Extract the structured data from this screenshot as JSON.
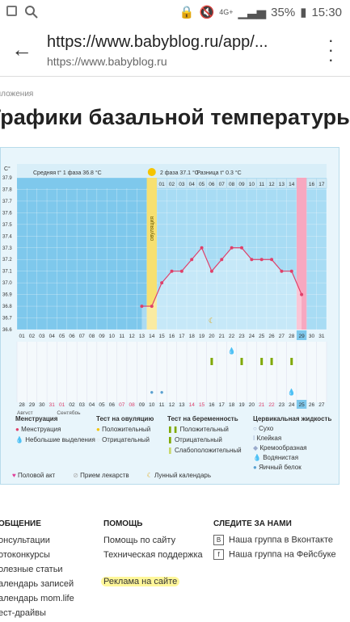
{
  "status": {
    "battery": "35%",
    "time": "15:30",
    "network": "4G+"
  },
  "browser": {
    "url": "https://www.babyblog.ru/app/...",
    "domain": "https://www.babyblog.ru"
  },
  "page": {
    "breadcrumb": "риложения",
    "title": "Графики базальной температуры"
  },
  "chart_data": {
    "type": "line",
    "unit": "С°",
    "phase1": "Средняя t° 1 фаза  36.8 °C",
    "phase2": "2 фаза  37.1 °C",
    "diff": "Разница t°  0.3 °C",
    "ovulation_label": "овуляция",
    "yticks": [
      "37.9",
      "37.8",
      "37.7",
      "37.6",
      "37.5",
      "37.4",
      "37.3",
      "37.2",
      "37.1",
      "37.0",
      "36.9",
      "36.8",
      "36.7",
      "36.6"
    ],
    "ylim": [
      36.6,
      37.9
    ],
    "top_days": [
      "01",
      "02",
      "03",
      "04",
      "05",
      "06",
      "07",
      "08",
      "09",
      "10",
      "11",
      "12",
      "13",
      "14",
      "15",
      "16",
      "17"
    ],
    "x": [
      "01",
      "02",
      "03",
      "04",
      "05",
      "06",
      "07",
      "08",
      "09",
      "10",
      "11",
      "12",
      "13",
      "14",
      "15",
      "16",
      "17",
      "18",
      "19",
      "20",
      "21",
      "22",
      "23",
      "24",
      "25",
      "26",
      "27",
      "28",
      "29",
      "30",
      "31"
    ],
    "y": [
      null,
      null,
      null,
      null,
      null,
      null,
      null,
      null,
      null,
      null,
      null,
      null,
      36.8,
      36.8,
      37.0,
      37.1,
      37.1,
      37.2,
      37.3,
      37.1,
      37.2,
      37.3,
      37.3,
      37.2,
      37.2,
      37.2,
      37.1,
      37.1,
      36.9,
      null,
      null
    ],
    "dates": [
      "28",
      "29",
      "30",
      "31",
      "01",
      "02",
      "03",
      "04",
      "05",
      "06",
      "07",
      "08",
      "09",
      "10",
      "11",
      "12",
      "13",
      "14",
      "15",
      "16",
      "17",
      "18",
      "19",
      "20",
      "21",
      "22",
      "23",
      "24",
      "25",
      "26",
      "27"
    ],
    "months": [
      "Август",
      "Сентябрь"
    ]
  },
  "legend": {
    "menstruation": {
      "title": "Менструация",
      "items": [
        "Менструация",
        "Небольшие выделения"
      ]
    },
    "ovulation_test": {
      "title": "Тест на овуляцию",
      "items": [
        "Положительный",
        "Отрицательный"
      ]
    },
    "pregnancy_test": {
      "title": "Тест на беременность",
      "items": [
        "Положительный",
        "Отрицательный",
        "Слабоположительный"
      ]
    },
    "cervical": {
      "title": "Цервикальная жидкость",
      "items": [
        "Сухо",
        "Клейкая",
        "Кремообразная",
        "Водянистая",
        "Яичный белок"
      ]
    },
    "bottom": [
      "Половой акт",
      "Прием лекарств",
      "Лунный календарь"
    ]
  },
  "footer": {
    "col1": {
      "title": "ОБЩЕНИЕ",
      "links": [
        "онсультации",
        "отоконкурсы",
        "олезные статьи",
        "алендарь записей",
        "алендарь mom.life",
        "ест-драйвы"
      ]
    },
    "col2": {
      "title": "ПОМОЩЬ",
      "links": [
        "Помощь по сайту",
        "Техническая поддержка",
        "Реклама на сайте"
      ]
    },
    "col3": {
      "title": "СЛЕДИТЕ ЗА НАМИ",
      "links": [
        "Наша группа в Вконтакте",
        "Наша группа на Фейсбуке"
      ]
    }
  },
  "colors": {
    "grid_bg": "#7ec8ec",
    "ovulation": "#f7e070",
    "line": "#e0406a",
    "highlight": "#f7a8c0"
  }
}
